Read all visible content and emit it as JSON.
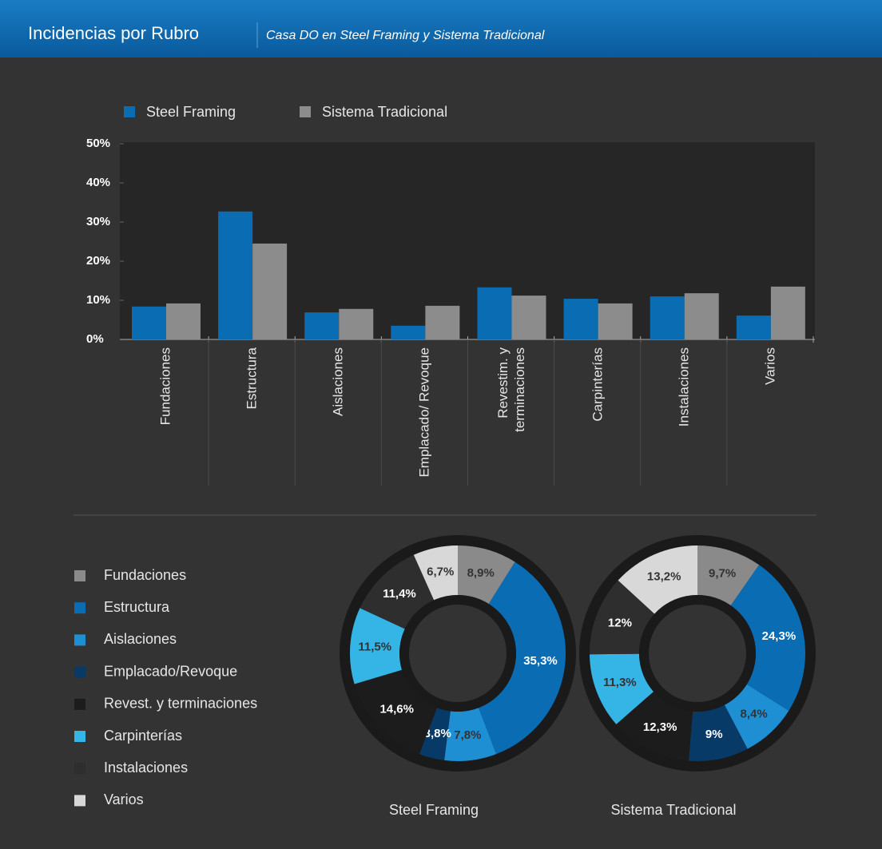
{
  "header": {
    "title": "Incidencias por Rubro",
    "subtitle": "Casa DO en Steel Framing y Sistema Tradicional"
  },
  "chart_data": [
    {
      "type": "bar",
      "categories": [
        "Fundaciones",
        "Estructura",
        "Aislaciones",
        "Emplacado/ Revoque",
        "Revestim. y terminaciones",
        "Carpinterías",
        "Instalaciones",
        "Varios"
      ],
      "series": [
        {
          "name": "Steel Framing",
          "color": "#0a6db3",
          "values": [
            8.4,
            32.7,
            6.9,
            3.5,
            13.3,
            10.4,
            11,
            6.1
          ]
        },
        {
          "name": "Sistema Tradicional",
          "color": "#8c8c8c",
          "values": [
            9.2,
            24.5,
            7.8,
            8.6,
            11.2,
            9.2,
            11.8,
            13.5
          ]
        }
      ],
      "ylim": [
        0,
        50
      ],
      "yticks": [
        {
          "value": 0,
          "label": "0%"
        },
        {
          "value": 10,
          "label": "10%"
        },
        {
          "value": 20,
          "label": "20%"
        },
        {
          "value": 30,
          "label": "30%"
        },
        {
          "value": 40,
          "label": "40%"
        },
        {
          "value": 50,
          "label": "50%"
        }
      ],
      "legend": "top-left"
    },
    {
      "type": "pie",
      "title": "Steel Framing",
      "categories": [
        "Fundaciones",
        "Estructura",
        "Aislaciones",
        "Emplacado/Revoque",
        "Revest. y terminaciones",
        "Carpinterías",
        "Instalaciones",
        "Varios"
      ],
      "colors": [
        "#8a8a8a",
        "#0a6db3",
        "#1f8fd4",
        "#073a66",
        "#1c1c1c",
        "#35b4e6",
        "#2e2e2e",
        "#d8d8d8"
      ],
      "values": [
        8.9,
        35.3,
        7.8,
        3.8,
        14.6,
        11.5,
        11.4,
        6.7
      ],
      "value_labels": [
        "8,9%",
        "35,3%",
        "7,8%",
        "3,8%",
        "14,6%",
        "11,5%",
        "11,4%",
        "6,7%"
      ]
    },
    {
      "type": "pie",
      "title": "Sistema Tradicional",
      "categories": [
        "Fundaciones",
        "Estructura",
        "Aislaciones",
        "Emplacado/Revoque",
        "Revest. y terminaciones",
        "Carpinterías",
        "Instalaciones",
        "Varios"
      ],
      "colors": [
        "#8a8a8a",
        "#0a6db3",
        "#1f8fd4",
        "#073a66",
        "#1c1c1c",
        "#35b4e6",
        "#2e2e2e",
        "#d8d8d8"
      ],
      "values": [
        9.7,
        24.3,
        8.4,
        9,
        12.3,
        11.3,
        12,
        13.2
      ],
      "value_labels": [
        "9,7%",
        "24,3%",
        "8,4%",
        "9%",
        "12,3%",
        "11,3%",
        "12%",
        "13,2%"
      ]
    }
  ]
}
